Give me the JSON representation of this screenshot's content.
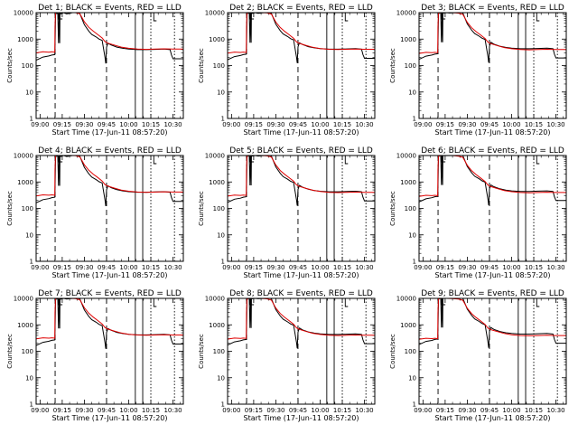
{
  "colors": {
    "black_series": "#000000",
    "red_series": "#e00000",
    "background": "#ffffff"
  },
  "chart_data": [
    {
      "type": "line",
      "title": "Det 1; BLACK = Events, RED = LLD",
      "xlabel": "Start Time (17-Jun-11 08:57:20)",
      "ylabel": "Counts/sec",
      "x_tick_labels": [
        "09:00",
        "09:15",
        "09:30",
        "09:45",
        "10:00",
        "10:15",
        "10:30"
      ],
      "y_tick_labels": [
        "1",
        "10",
        "100",
        "1000",
        "10000"
      ],
      "yscale": "log",
      "ylim": [
        1,
        10000
      ],
      "grid": false
    },
    {
      "type": "line",
      "title": "Det 2; BLACK = Events, RED = LLD",
      "xlabel": "Start Time (17-Jun-11 08:57:20)",
      "ylabel": "Counts/sec",
      "x_tick_labels": [
        "09:00",
        "09:15",
        "09:30",
        "09:45",
        "10:00",
        "10:15",
        "10:30"
      ],
      "y_tick_labels": [
        "1",
        "10",
        "100",
        "1000",
        "10000"
      ],
      "yscale": "log",
      "ylim": [
        1,
        10000
      ],
      "grid": false
    },
    {
      "type": "line",
      "title": "Det 3; BLACK = Events, RED = LLD",
      "xlabel": "Start Time (17-Jun-11 08:57:20)",
      "ylabel": "Counts/sec",
      "x_tick_labels": [
        "09:00",
        "09:15",
        "09:30",
        "09:45",
        "10:00",
        "10:15",
        "10:30"
      ],
      "y_tick_labels": [
        "1",
        "10",
        "100",
        "1000",
        "10000"
      ],
      "yscale": "log",
      "ylim": [
        1,
        10000
      ],
      "grid": false
    },
    {
      "type": "line",
      "title": "Det 4; BLACK = Events, RED = LLD",
      "xlabel": "Start Time (17-Jun-11 08:57:20)",
      "ylabel": "Counts/sec",
      "x_tick_labels": [
        "09:00",
        "09:15",
        "09:30",
        "09:45",
        "10:00",
        "10:15",
        "10:30"
      ],
      "y_tick_labels": [
        "1",
        "10",
        "100",
        "1000",
        "10000"
      ],
      "yscale": "log",
      "ylim": [
        1,
        10000
      ],
      "grid": false
    },
    {
      "type": "line",
      "title": "Det 5; BLACK = Events, RED = LLD",
      "xlabel": "Start Time (17-Jun-11 08:57:20)",
      "ylabel": "Counts/sec",
      "x_tick_labels": [
        "09:00",
        "09:15",
        "09:30",
        "09:45",
        "10:00",
        "10:15",
        "10:30"
      ],
      "y_tick_labels": [
        "1",
        "10",
        "100",
        "1000",
        "10000"
      ],
      "yscale": "log",
      "ylim": [
        1,
        10000
      ],
      "grid": false
    },
    {
      "type": "line",
      "title": "Det 6; BLACK = Events, RED = LLD",
      "xlabel": "Start Time (17-Jun-11 08:57:20)",
      "ylabel": "Counts/sec",
      "x_tick_labels": [
        "09:00",
        "09:15",
        "09:30",
        "09:45",
        "10:00",
        "10:15",
        "10:30"
      ],
      "y_tick_labels": [
        "1",
        "10",
        "100",
        "1000",
        "10000"
      ],
      "yscale": "log",
      "ylim": [
        1,
        10000
      ],
      "grid": false
    },
    {
      "type": "line",
      "title": "Det 7; BLACK = Events, RED = LLD",
      "xlabel": "Start Time (17-Jun-11 08:57:20)",
      "ylabel": "Counts/sec",
      "x_tick_labels": [
        "09:00",
        "09:15",
        "09:30",
        "09:45",
        "10:00",
        "10:15",
        "10:30"
      ],
      "y_tick_labels": [
        "1",
        "10",
        "100",
        "1000",
        "10000"
      ],
      "yscale": "log",
      "ylim": [
        1,
        10000
      ],
      "grid": false
    },
    {
      "type": "line",
      "title": "Det 8; BLACK = Events, RED = LLD",
      "xlabel": "Start Time (17-Jun-11 08:57:20)",
      "ylabel": "Counts/sec",
      "x_tick_labels": [
        "09:00",
        "09:15",
        "09:30",
        "09:45",
        "10:00",
        "10:15",
        "10:30"
      ],
      "y_tick_labels": [
        "1",
        "10",
        "100",
        "1000",
        "10000"
      ],
      "yscale": "log",
      "ylim": [
        1,
        10000
      ],
      "grid": false
    },
    {
      "type": "line",
      "title": "Det 9; BLACK = Events, RED = LLD",
      "xlabel": "Start Time (17-Jun-11 08:57:20)",
      "ylabel": "Counts/sec",
      "x_tick_labels": [
        "09:00",
        "09:15",
        "09:30",
        "09:45",
        "10:00",
        "10:15",
        "10:30"
      ],
      "y_tick_labels": [
        "1",
        "10",
        "100",
        "1000",
        "10000"
      ],
      "yscale": "log",
      "ylim": [
        1,
        10000
      ],
      "grid": false
    }
  ]
}
